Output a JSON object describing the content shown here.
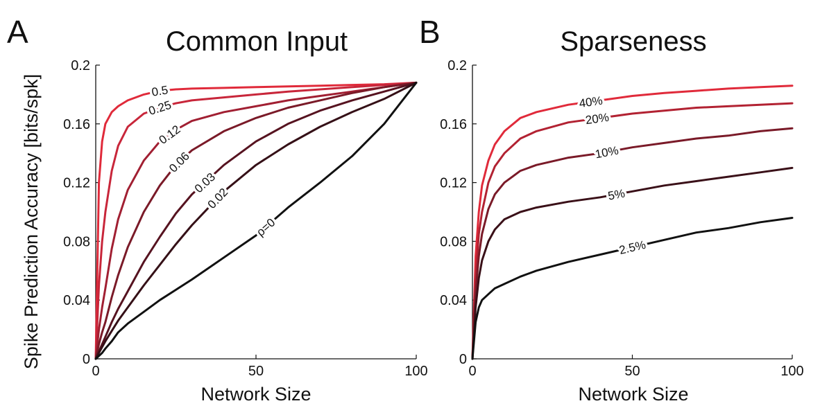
{
  "figure": {
    "y_axis_label": "Spike Prediction Accuracy [bits/spk]"
  },
  "chart_data": [
    {
      "type": "line",
      "panel": "A",
      "title": "Common Input",
      "xlabel": "Network Size",
      "ylabel": "Spike Prediction Accuracy [bits/spk]",
      "xlim": [
        0,
        100
      ],
      "ylim": [
        0,
        0.2
      ],
      "xticks": [
        "0",
        "50",
        "100"
      ],
      "yticks": [
        "0",
        "0.04",
        "0.08",
        "0.12",
        "0.16",
        "0.2"
      ],
      "grid": false,
      "legend": "none (inline curve labels)",
      "x": [
        0,
        1,
        2,
        3,
        5,
        7,
        10,
        15,
        20,
        25,
        30,
        40,
        50,
        60,
        70,
        80,
        90,
        100
      ],
      "series": [
        {
          "name": "0.5",
          "label_x": 20,
          "color": "#e02a3a",
          "values": [
            0,
            0.12,
            0.148,
            0.16,
            0.168,
            0.172,
            0.176,
            0.18,
            0.1825,
            0.1835,
            0.184,
            0.1845,
            0.185,
            0.1855,
            0.186,
            0.1865,
            0.187,
            0.188
          ]
        },
        {
          "name": "0.25",
          "label_x": 20,
          "color": "#c8263a",
          "values": [
            0,
            0.05,
            0.08,
            0.1,
            0.128,
            0.145,
            0.158,
            0.167,
            0.171,
            0.174,
            0.176,
            0.178,
            0.18,
            0.182,
            0.1835,
            0.185,
            0.1865,
            0.188
          ]
        },
        {
          "name": "0.12",
          "label_x": 23,
          "color": "#a11f32",
          "values": [
            0,
            0.02,
            0.035,
            0.048,
            0.075,
            0.095,
            0.115,
            0.135,
            0.148,
            0.156,
            0.162,
            0.168,
            0.172,
            0.176,
            0.179,
            0.182,
            0.185,
            0.188
          ]
        },
        {
          "name": "0.06",
          "label_x": 26,
          "color": "#7a1a28",
          "values": [
            0,
            0.01,
            0.018,
            0.025,
            0.042,
            0.057,
            0.076,
            0.1,
            0.118,
            0.132,
            0.142,
            0.155,
            0.164,
            0.171,
            0.176,
            0.181,
            0.185,
            0.188
          ]
        },
        {
          "name": "0.03",
          "label_x": 34,
          "color": "#561320",
          "values": [
            0,
            0.005,
            0.01,
            0.015,
            0.025,
            0.034,
            0.046,
            0.066,
            0.083,
            0.099,
            0.112,
            0.132,
            0.148,
            0.16,
            0.169,
            0.176,
            0.182,
            0.188
          ]
        },
        {
          "name": "0.02",
          "label_x": 38,
          "color": "#351017",
          "values": [
            0,
            0.004,
            0.008,
            0.012,
            0.019,
            0.026,
            0.035,
            0.05,
            0.064,
            0.078,
            0.091,
            0.114,
            0.132,
            0.146,
            0.158,
            0.168,
            0.177,
            0.188
          ]
        },
        {
          "name": "ρ=0",
          "label_x": 53,
          "color": "#111111",
          "values": [
            0,
            0.002,
            0.004,
            0.007,
            0.012,
            0.018,
            0.024,
            0.032,
            0.04,
            0.047,
            0.054,
            0.069,
            0.084,
            0.103,
            0.12,
            0.138,
            0.16,
            0.188
          ]
        }
      ]
    },
    {
      "type": "line",
      "panel": "B",
      "title": "Sparseness",
      "xlabel": "Network Size",
      "ylabel": "Spike Prediction Accuracy [bits/spk]",
      "xlim": [
        0,
        100
      ],
      "ylim": [
        0,
        0.2
      ],
      "xticks": [
        "0",
        "50",
        "100"
      ],
      "yticks": [
        "0",
        "0.04",
        "0.08",
        "0.12",
        "0.16",
        "0.2"
      ],
      "grid": false,
      "legend": "none (inline curve labels)",
      "x": [
        0,
        1,
        2,
        3,
        5,
        7,
        10,
        15,
        20,
        30,
        40,
        50,
        60,
        70,
        80,
        90,
        100
      ],
      "series": [
        {
          "name": "40%",
          "label_x": 37,
          "color": "#e02a3a",
          "values": [
            0,
            0.07,
            0.1,
            0.118,
            0.135,
            0.146,
            0.155,
            0.164,
            0.168,
            0.173,
            0.176,
            0.179,
            0.181,
            0.1825,
            0.184,
            0.185,
            0.186
          ]
        },
        {
          "name": "20%",
          "label_x": 39,
          "color": "#b22232",
          "values": [
            0,
            0.055,
            0.085,
            0.1,
            0.12,
            0.131,
            0.14,
            0.15,
            0.155,
            0.161,
            0.164,
            0.167,
            0.169,
            0.171,
            0.172,
            0.173,
            0.174
          ]
        },
        {
          "name": "10%",
          "label_x": 42,
          "color": "#7a1a28",
          "values": [
            0,
            0.045,
            0.07,
            0.085,
            0.102,
            0.112,
            0.12,
            0.128,
            0.132,
            0.137,
            0.14,
            0.144,
            0.147,
            0.15,
            0.152,
            0.155,
            0.157
          ]
        },
        {
          "name": "5%",
          "label_x": 45,
          "color": "#3a1018",
          "values": [
            0,
            0.035,
            0.055,
            0.067,
            0.08,
            0.088,
            0.095,
            0.1,
            0.103,
            0.107,
            0.11,
            0.114,
            0.118,
            0.121,
            0.124,
            0.127,
            0.13
          ]
        },
        {
          "name": "2.5%",
          "label_x": 50,
          "color": "#111111",
          "values": [
            0,
            0.025,
            0.035,
            0.04,
            0.044,
            0.048,
            0.051,
            0.056,
            0.06,
            0.066,
            0.071,
            0.076,
            0.081,
            0.086,
            0.089,
            0.093,
            0.096
          ]
        }
      ]
    }
  ]
}
